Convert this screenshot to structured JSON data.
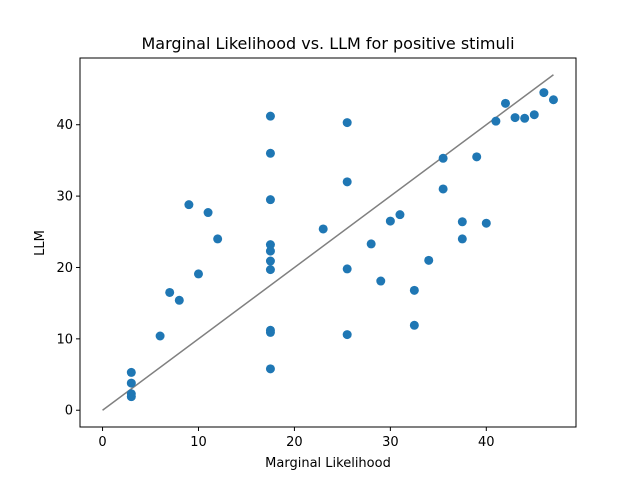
{
  "chart_data": {
    "type": "scatter",
    "title": "Marginal Likelihood vs. LLM for positive stimuli",
    "xlabel": "Marginal Likelihood",
    "ylabel": "LLM",
    "xlim": [
      -2.35,
      49.35
    ],
    "ylim": [
      -2.35,
      49.35
    ],
    "xticks": [
      0,
      10,
      20,
      30,
      40
    ],
    "yticks": [
      0,
      10,
      20,
      30,
      40
    ],
    "grid": false,
    "marker_color": "#1f77b4",
    "reference_line": {
      "x": [
        0,
        47
      ],
      "y": [
        0,
        47
      ],
      "color": "#808080"
    },
    "series": [
      {
        "name": "positive stimuli",
        "points": [
          [
            3,
            5.3
          ],
          [
            3,
            3.8
          ],
          [
            3,
            2.3
          ],
          [
            3,
            1.9
          ],
          [
            6,
            10.4
          ],
          [
            7,
            16.5
          ],
          [
            8,
            15.4
          ],
          [
            9,
            28.8
          ],
          [
            10,
            19.1
          ],
          [
            11,
            27.7
          ],
          [
            12,
            24.0
          ],
          [
            17.5,
            41.2
          ],
          [
            17.5,
            36.0
          ],
          [
            17.5,
            29.5
          ],
          [
            17.5,
            23.2
          ],
          [
            17.5,
            22.3
          ],
          [
            17.5,
            20.9
          ],
          [
            17.5,
            19.7
          ],
          [
            17.5,
            11.2
          ],
          [
            17.5,
            10.9
          ],
          [
            17.5,
            5.8
          ],
          [
            23,
            25.4
          ],
          [
            25.5,
            40.3
          ],
          [
            25.5,
            32.0
          ],
          [
            25.5,
            19.8
          ],
          [
            25.5,
            10.6
          ],
          [
            28,
            23.3
          ],
          [
            29,
            18.1
          ],
          [
            30,
            26.5
          ],
          [
            31,
            27.4
          ],
          [
            32.5,
            16.8
          ],
          [
            32.5,
            11.9
          ],
          [
            34,
            21.0
          ],
          [
            35.5,
            35.3
          ],
          [
            35.5,
            31.0
          ],
          [
            37.5,
            26.4
          ],
          [
            37.5,
            24.0
          ],
          [
            39,
            35.5
          ],
          [
            40,
            26.2
          ],
          [
            41,
            40.5
          ],
          [
            42,
            43.0
          ],
          [
            43,
            41.0
          ],
          [
            44,
            40.9
          ],
          [
            45,
            41.4
          ],
          [
            46,
            44.5
          ],
          [
            47,
            43.5
          ]
        ]
      }
    ]
  }
}
